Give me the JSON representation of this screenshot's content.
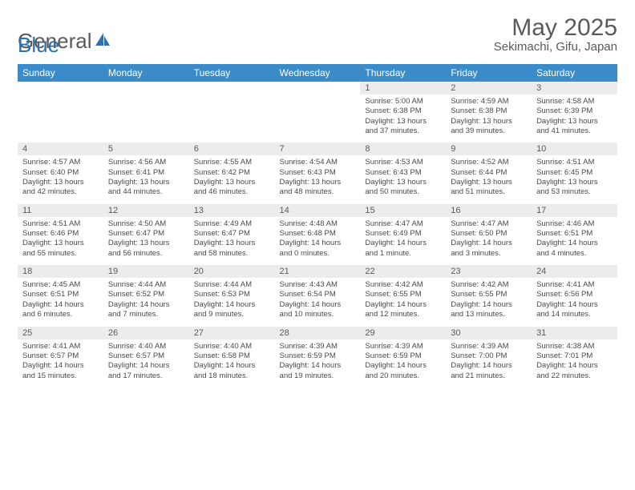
{
  "brand": {
    "text1": "General",
    "text2": "Blue"
  },
  "colors": {
    "header_bg": "#3b8bc9",
    "header_text": "#ffffff",
    "daynum_bg": "#ececec",
    "body_text": "#5a5a5a",
    "brand_gray": "#5a5a5a",
    "brand_blue": "#2f6fb0"
  },
  "title": "May 2025",
  "location": "Sekimachi, Gifu, Japan",
  "weekdays": [
    "Sunday",
    "Monday",
    "Tuesday",
    "Wednesday",
    "Thursday",
    "Friday",
    "Saturday"
  ],
  "weeks": [
    {
      "nums": [
        "",
        "",
        "",
        "",
        "1",
        "2",
        "3"
      ],
      "cells": [
        null,
        null,
        null,
        null,
        {
          "sr": "5:00 AM",
          "ss": "6:38 PM",
          "dl": "13 hours and 37 minutes."
        },
        {
          "sr": "4:59 AM",
          "ss": "6:38 PM",
          "dl": "13 hours and 39 minutes."
        },
        {
          "sr": "4:58 AM",
          "ss": "6:39 PM",
          "dl": "13 hours and 41 minutes."
        }
      ]
    },
    {
      "nums": [
        "4",
        "5",
        "6",
        "7",
        "8",
        "9",
        "10"
      ],
      "cells": [
        {
          "sr": "4:57 AM",
          "ss": "6:40 PM",
          "dl": "13 hours and 42 minutes."
        },
        {
          "sr": "4:56 AM",
          "ss": "6:41 PM",
          "dl": "13 hours and 44 minutes."
        },
        {
          "sr": "4:55 AM",
          "ss": "6:42 PM",
          "dl": "13 hours and 46 minutes."
        },
        {
          "sr": "4:54 AM",
          "ss": "6:43 PM",
          "dl": "13 hours and 48 minutes."
        },
        {
          "sr": "4:53 AM",
          "ss": "6:43 PM",
          "dl": "13 hours and 50 minutes."
        },
        {
          "sr": "4:52 AM",
          "ss": "6:44 PM",
          "dl": "13 hours and 51 minutes."
        },
        {
          "sr": "4:51 AM",
          "ss": "6:45 PM",
          "dl": "13 hours and 53 minutes."
        }
      ]
    },
    {
      "nums": [
        "11",
        "12",
        "13",
        "14",
        "15",
        "16",
        "17"
      ],
      "cells": [
        {
          "sr": "4:51 AM",
          "ss": "6:46 PM",
          "dl": "13 hours and 55 minutes."
        },
        {
          "sr": "4:50 AM",
          "ss": "6:47 PM",
          "dl": "13 hours and 56 minutes."
        },
        {
          "sr": "4:49 AM",
          "ss": "6:47 PM",
          "dl": "13 hours and 58 minutes."
        },
        {
          "sr": "4:48 AM",
          "ss": "6:48 PM",
          "dl": "14 hours and 0 minutes."
        },
        {
          "sr": "4:47 AM",
          "ss": "6:49 PM",
          "dl": "14 hours and 1 minute."
        },
        {
          "sr": "4:47 AM",
          "ss": "6:50 PM",
          "dl": "14 hours and 3 minutes."
        },
        {
          "sr": "4:46 AM",
          "ss": "6:51 PM",
          "dl": "14 hours and 4 minutes."
        }
      ]
    },
    {
      "nums": [
        "18",
        "19",
        "20",
        "21",
        "22",
        "23",
        "24"
      ],
      "cells": [
        {
          "sr": "4:45 AM",
          "ss": "6:51 PM",
          "dl": "14 hours and 6 minutes."
        },
        {
          "sr": "4:44 AM",
          "ss": "6:52 PM",
          "dl": "14 hours and 7 minutes."
        },
        {
          "sr": "4:44 AM",
          "ss": "6:53 PM",
          "dl": "14 hours and 9 minutes."
        },
        {
          "sr": "4:43 AM",
          "ss": "6:54 PM",
          "dl": "14 hours and 10 minutes."
        },
        {
          "sr": "4:42 AM",
          "ss": "6:55 PM",
          "dl": "14 hours and 12 minutes."
        },
        {
          "sr": "4:42 AM",
          "ss": "6:55 PM",
          "dl": "14 hours and 13 minutes."
        },
        {
          "sr": "4:41 AM",
          "ss": "6:56 PM",
          "dl": "14 hours and 14 minutes."
        }
      ]
    },
    {
      "nums": [
        "25",
        "26",
        "27",
        "28",
        "29",
        "30",
        "31"
      ],
      "cells": [
        {
          "sr": "4:41 AM",
          "ss": "6:57 PM",
          "dl": "14 hours and 15 minutes."
        },
        {
          "sr": "4:40 AM",
          "ss": "6:57 PM",
          "dl": "14 hours and 17 minutes."
        },
        {
          "sr": "4:40 AM",
          "ss": "6:58 PM",
          "dl": "14 hours and 18 minutes."
        },
        {
          "sr": "4:39 AM",
          "ss": "6:59 PM",
          "dl": "14 hours and 19 minutes."
        },
        {
          "sr": "4:39 AM",
          "ss": "6:59 PM",
          "dl": "14 hours and 20 minutes."
        },
        {
          "sr": "4:39 AM",
          "ss": "7:00 PM",
          "dl": "14 hours and 21 minutes."
        },
        {
          "sr": "4:38 AM",
          "ss": "7:01 PM",
          "dl": "14 hours and 22 minutes."
        }
      ]
    }
  ],
  "labels": {
    "sunrise": "Sunrise: ",
    "sunset": "Sunset: ",
    "daylight": "Daylight: "
  }
}
